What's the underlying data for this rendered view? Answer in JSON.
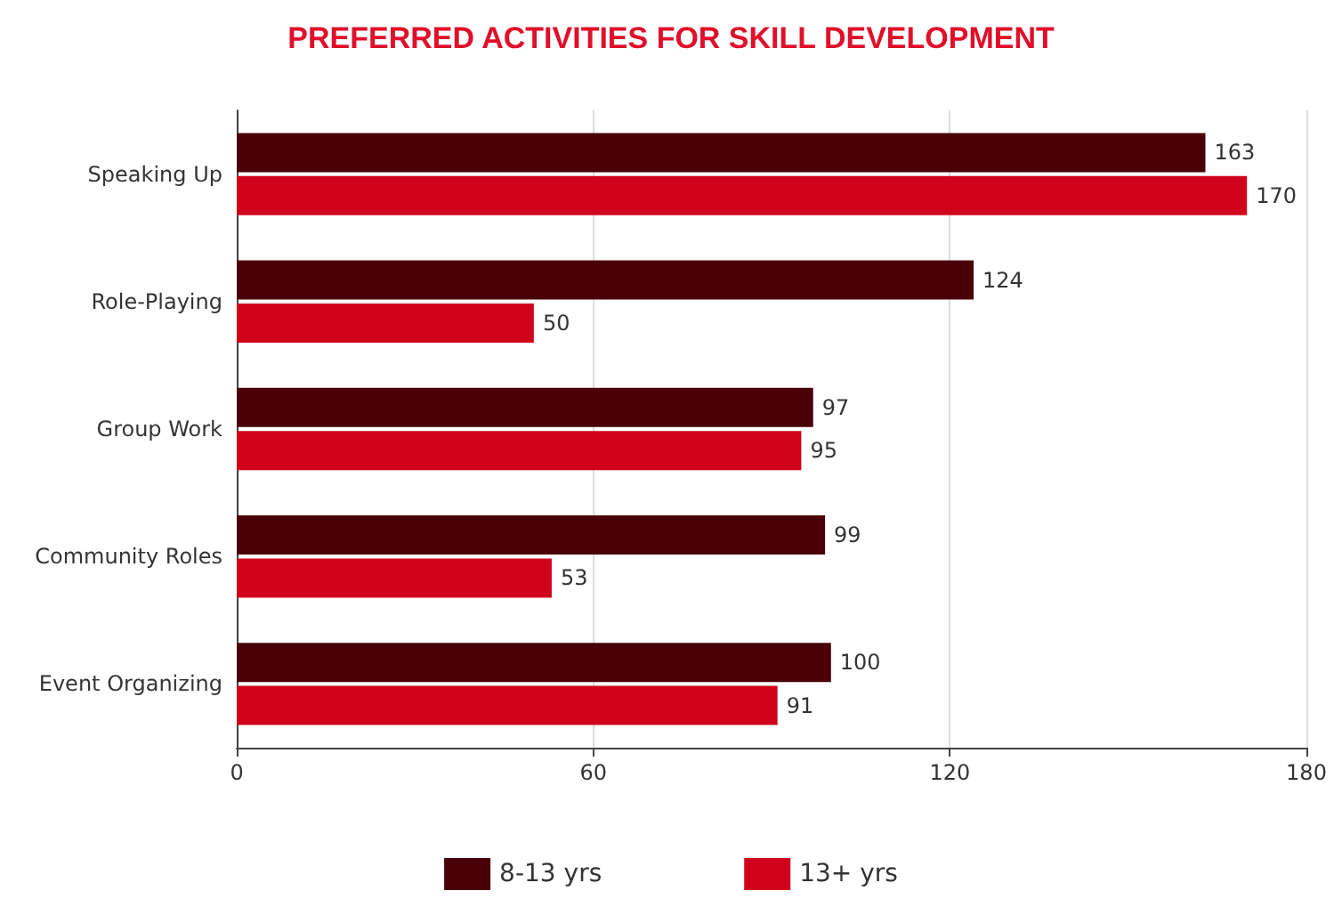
{
  "chart_data": {
    "type": "bar",
    "orientation": "horizontal",
    "title": "PREFERRED ACTIVITIES FOR SKILL DEVELOPMENT",
    "categories": [
      "Speaking Up",
      "Role-Playing",
      "Group Work",
      "Community Roles",
      "Event Organizing"
    ],
    "series": [
      {
        "name": "8-13 yrs",
        "color": "#4a0008",
        "values": [
          163,
          124,
          97,
          99,
          100
        ]
      },
      {
        "name": "13+ yrs",
        "color": "#d0021b",
        "values": [
          170,
          50,
          95,
          53,
          91
        ]
      }
    ],
    "xlim": [
      0,
      180
    ],
    "xticks": [
      0,
      60,
      120,
      180
    ],
    "grid": "x",
    "legend": "bottom",
    "data_labels": true
  }
}
